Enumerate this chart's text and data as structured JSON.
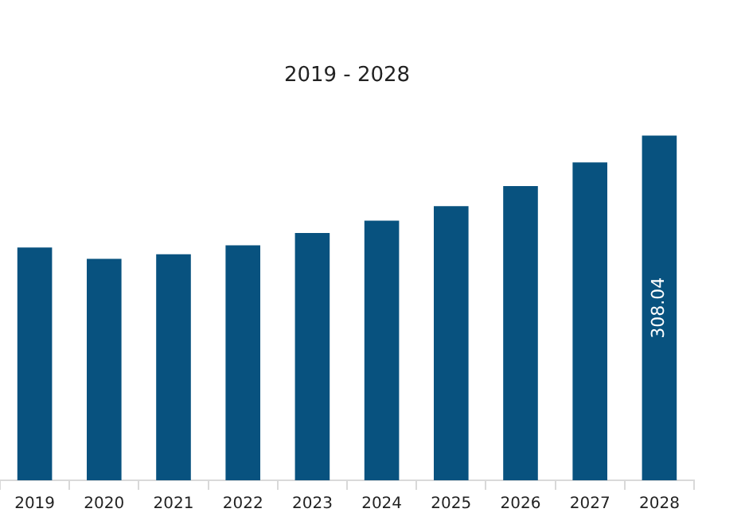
{
  "chart_data": {
    "type": "bar",
    "title": "2019 - 2028",
    "categories": [
      "2019",
      "2020",
      "2021",
      "2022",
      "2023",
      "2024",
      "2025",
      "2026",
      "2027",
      "2028"
    ],
    "values": [
      208,
      198,
      202,
      210,
      221,
      232,
      245,
      263,
      284,
      308.04
    ],
    "value_labels": [
      null,
      null,
      null,
      null,
      null,
      null,
      null,
      null,
      null,
      "308.04"
    ],
    "color": "#08527f",
    "grid": false,
    "legend": false
  }
}
